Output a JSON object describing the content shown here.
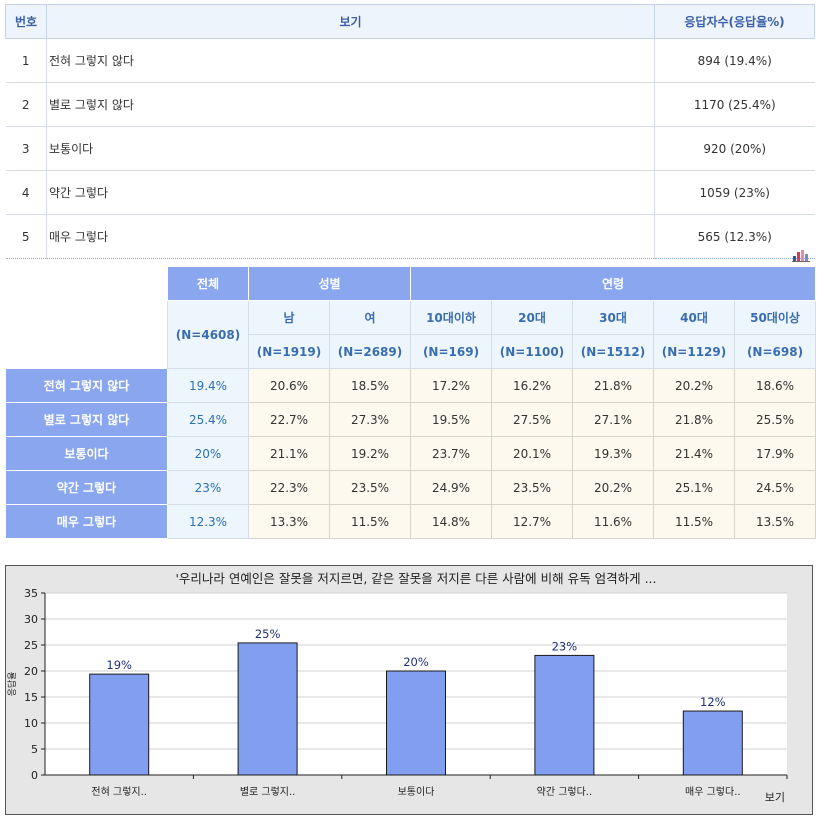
{
  "response_table": {
    "headers": [
      "번호",
      "보기",
      "응답자수(응답율%)"
    ],
    "rows": [
      {
        "no": "1",
        "option": "전혀 그렇지 않다",
        "count": "894 (19.4%)"
      },
      {
        "no": "2",
        "option": "별로 그렇지 않다",
        "count": "1170 (25.4%)"
      },
      {
        "no": "3",
        "option": "보통이다",
        "count": "920 (20%)"
      },
      {
        "no": "4",
        "option": "약간 그렇다",
        "count": "1059 (23%)"
      },
      {
        "no": "5",
        "option": "매우 그렇다",
        "count": "565 (12.3%)"
      }
    ]
  },
  "cross_table": {
    "total_label": "전체",
    "total_n": "(N=4608)",
    "gender_label": "성별",
    "age_label": "연령",
    "groups": [
      {
        "label": "남",
        "n": "(N=1919)"
      },
      {
        "label": "여",
        "n": "(N=2689)"
      },
      {
        "label": "10대이하",
        "n": "(N=169)"
      },
      {
        "label": "20대",
        "n": "(N=1100)"
      },
      {
        "label": "30대",
        "n": "(N=1512)"
      },
      {
        "label": "40대",
        "n": "(N=1129)"
      },
      {
        "label": "50대이상",
        "n": "(N=698)"
      }
    ],
    "rows": [
      {
        "label": "전혀 그렇지 않다",
        "total": "19.4%",
        "values": [
          "20.6%",
          "18.5%",
          "17.2%",
          "16.2%",
          "21.8%",
          "20.2%",
          "18.6%"
        ]
      },
      {
        "label": "별로 그렇지 않다",
        "total": "25.4%",
        "values": [
          "22.7%",
          "27.3%",
          "19.5%",
          "27.5%",
          "27.1%",
          "21.8%",
          "25.5%"
        ]
      },
      {
        "label": "보통이다",
        "total": "20%",
        "values": [
          "21.1%",
          "19.2%",
          "23.7%",
          "20.1%",
          "19.3%",
          "21.4%",
          "17.9%"
        ]
      },
      {
        "label": "약간 그렇다",
        "total": "23%",
        "values": [
          "22.3%",
          "23.5%",
          "24.9%",
          "23.5%",
          "20.2%",
          "25.1%",
          "24.5%"
        ]
      },
      {
        "label": "매우 그렇다",
        "total": "12.3%",
        "values": [
          "13.3%",
          "11.5%",
          "14.8%",
          "12.7%",
          "11.6%",
          "11.5%",
          "13.5%"
        ]
      }
    ]
  },
  "icons": {
    "chart_icon": "bar-chart-icon"
  },
  "colors": {
    "header_blue": "#89a6ee",
    "bar_fill": "#829ef0",
    "bar_stroke": "#1a1a1a",
    "panel_bg": "#e6e6e6",
    "label_blue": "#1f2f7a"
  },
  "chart_data": {
    "type": "bar",
    "title": "'우리나라 연예인은 잘못을 저지르면, 같은 잘못을 저지른 다른 사람에 비해 유독 엄격하게 ...",
    "categories": [
      "전혀 그렇지..",
      "별로 그렇지..",
      "보통이다",
      "약간 그렇다..",
      "매우 그렇다.."
    ],
    "values": [
      19.4,
      25.4,
      20,
      23,
      12.3
    ],
    "data_labels": [
      "19%",
      "25%",
      "20%",
      "23%",
      "12%"
    ],
    "ylabel": "응답율",
    "xlabel": "보기",
    "ylim": [
      0,
      35
    ],
    "yticks": [
      0,
      5,
      10,
      15,
      20,
      25,
      30,
      35
    ],
    "grid": true
  }
}
